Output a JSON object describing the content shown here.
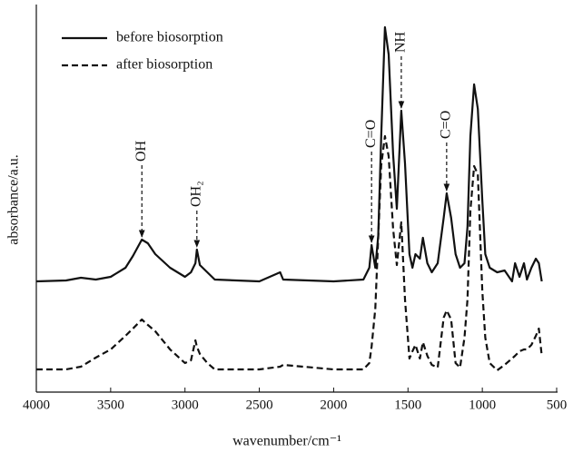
{
  "chart_data": {
    "type": "line",
    "xlabel": "wavenumber/cm⁻¹",
    "ylabel": "absorbance/a.u.",
    "x": [
      4000,
      3800,
      3700,
      3600,
      3500,
      3400,
      3350,
      3290,
      3250,
      3200,
      3100,
      3000,
      2960,
      2930,
      2920,
      2900,
      2850,
      2800,
      2500,
      2360,
      2340,
      2000,
      1800,
      1760,
      1745,
      1720,
      1700,
      1680,
      1655,
      1630,
      1600,
      1575,
      1545,
      1520,
      1490,
      1470,
      1450,
      1420,
      1400,
      1370,
      1340,
      1300,
      1260,
      1240,
      1210,
      1180,
      1150,
      1120,
      1100,
      1080,
      1055,
      1030,
      1000,
      980,
      950,
      900,
      850,
      800,
      780,
      750,
      720,
      700,
      670,
      640,
      620,
      600
    ],
    "series": [
      {
        "name": "before biosorption",
        "color": "#111111",
        "dash": "solid",
        "values": [
          122,
          123,
          126,
          124,
          127,
          137,
          150,
          168,
          164,
          152,
          137,
          127,
          132,
          142,
          157,
          140,
          132,
          124,
          122,
          132,
          124,
          122,
          124,
          137,
          162,
          137,
          172,
          282,
          402,
          372,
          262,
          202,
          310,
          252,
          152,
          137,
          152,
          147,
          170,
          142,
          132,
          142,
          192,
          219,
          192,
          152,
          137,
          142,
          182,
          282,
          339,
          312,
          212,
          152,
          137,
          132,
          134,
          122,
          142,
          127,
          142,
          124,
          137,
          147,
          142,
          122
        ]
      },
      {
        "name": "after biosorption",
        "color": "#111111",
        "dash": "dashed",
        "values": [
          25,
          25,
          28,
          38,
          47,
          62,
          70,
          80,
          74,
          67,
          47,
          32,
          35,
          57,
          50,
          42,
          32,
          25,
          25,
          28,
          30,
          25,
          25,
          32,
          50,
          92,
          170,
          250,
          282,
          260,
          180,
          140,
          187,
          102,
          37,
          45,
          52,
          37,
          55,
          40,
          30,
          27,
          82,
          90,
          80,
          32,
          27,
          60,
          102,
          200,
          249,
          240,
          112,
          60,
          32,
          24,
          30,
          37,
          40,
          45,
          47,
          47,
          52,
          62,
          70,
          40
        ]
      }
    ],
    "xlim": [
      4000,
      500
    ],
    "xticks": [
      4000,
      3500,
      3000,
      2500,
      2000,
      1500,
      1000,
      500
    ],
    "ylim": [
      0,
      427
    ],
    "legend": "upper left",
    "annotations": [
      {
        "text": "OH",
        "x": 3290
      },
      {
        "text": "OH₂",
        "x": 2920
      },
      {
        "text": "C=O",
        "x": 1745
      },
      {
        "text": "NH",
        "x": 1545
      },
      {
        "text": "C=O",
        "x": 1240
      }
    ]
  }
}
